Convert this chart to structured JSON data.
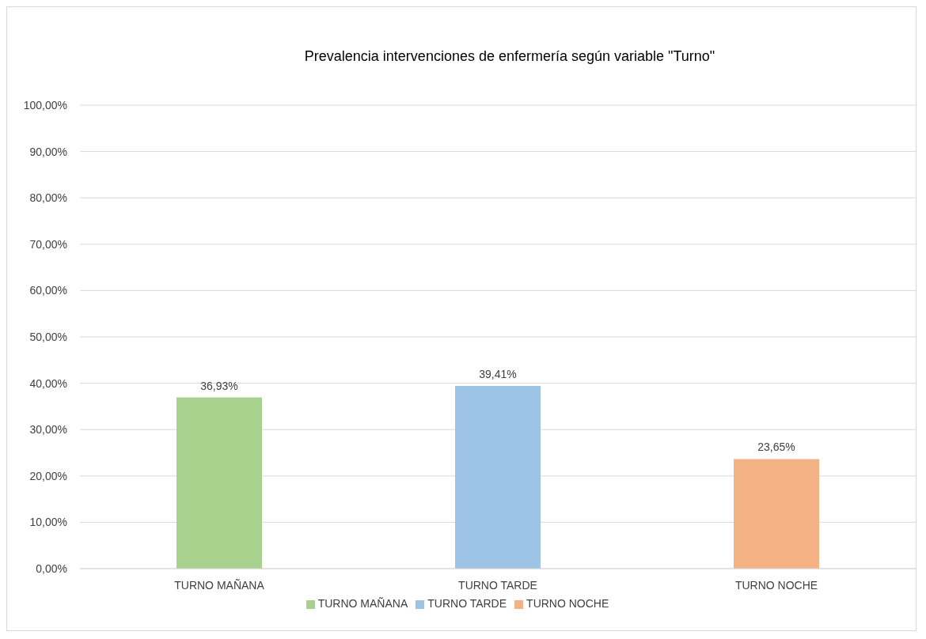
{
  "chart_data": {
    "type": "bar",
    "title": "Prevalencia intervenciones de enfermería según variable \"Turno\"",
    "categories": [
      "TURNO MAÑANA",
      "TURNO TARDE",
      "TURNO NOCHE"
    ],
    "stacked": true,
    "series": [
      {
        "name": "TURNO MAÑANA",
        "color": "#a9d18e",
        "values": [
          36.93,
          null,
          null
        ],
        "value_labels": [
          "36,93%",
          null,
          null
        ]
      },
      {
        "name": "TURNO TARDE",
        "color": "#9dc3e6",
        "values": [
          null,
          39.41,
          null
        ],
        "value_labels": [
          null,
          "39,41%",
          null
        ]
      },
      {
        "name": "TURNO NOCHE",
        "color": "#f4b183",
        "values": [
          null,
          null,
          23.65
        ],
        "value_labels": [
          null,
          null,
          "23,65%"
        ]
      }
    ],
    "ylim": [
      0,
      100
    ],
    "yticks": [
      {
        "value": 0,
        "label": "0,00%"
      },
      {
        "value": 10,
        "label": "10,00%"
      },
      {
        "value": 20,
        "label": "20,00%"
      },
      {
        "value": 30,
        "label": "30,00%"
      },
      {
        "value": 40,
        "label": "40,00%"
      },
      {
        "value": 50,
        "label": "50,00%"
      },
      {
        "value": 60,
        "label": "60,00%"
      },
      {
        "value": 70,
        "label": "70,00%"
      },
      {
        "value": 80,
        "label": "80,00%"
      },
      {
        "value": 90,
        "label": "90,00%"
      },
      {
        "value": 100,
        "label": "100,00%"
      }
    ],
    "grid": "y",
    "legend": "bottom"
  }
}
